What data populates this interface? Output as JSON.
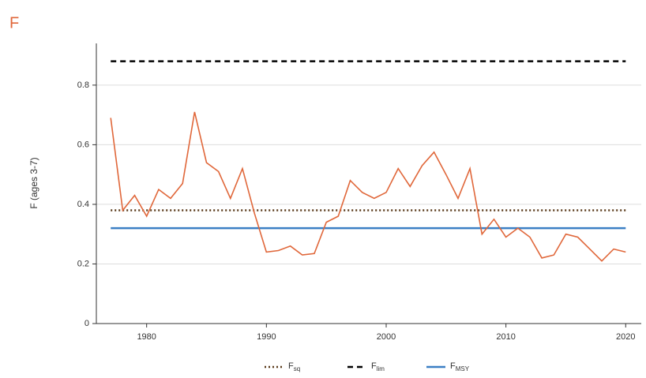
{
  "panel_label": "F",
  "chart_data": {
    "type": "line",
    "y_label": "F (ages 3-7)",
    "x": [
      1977,
      1978,
      1979,
      1980,
      1981,
      1982,
      1983,
      1984,
      1985,
      1986,
      1987,
      1988,
      1989,
      1990,
      1991,
      1992,
      1993,
      1994,
      1995,
      1996,
      1997,
      1998,
      1999,
      2000,
      2001,
      2002,
      2003,
      2004,
      2005,
      2006,
      2007,
      2008,
      2009,
      2010,
      2011,
      2012,
      2013,
      2014,
      2015,
      2016,
      2017,
      2018,
      2019,
      2020
    ],
    "values": [
      0.69,
      0.38,
      0.43,
      0.36,
      0.45,
      0.42,
      0.47,
      0.71,
      0.54,
      0.51,
      0.42,
      0.52,
      0.37,
      0.24,
      0.245,
      0.26,
      0.23,
      0.235,
      0.34,
      0.36,
      0.48,
      0.44,
      0.42,
      0.44,
      0.52,
      0.46,
      0.53,
      0.575,
      0.5,
      0.42,
      0.52,
      0.3,
      0.35,
      0.29,
      0.32,
      0.29,
      0.22,
      0.23,
      0.3,
      0.29,
      0.25,
      0.21,
      0.25,
      0.24
    ],
    "color": "#e0673a",
    "reference_lines": [
      {
        "name": "F",
        "subscript": "sq",
        "value": 0.38,
        "color": "#5a3a1a",
        "style": "dotted"
      },
      {
        "name": "F",
        "subscript": "lim",
        "value": 0.88,
        "color": "#000000",
        "style": "dashed"
      },
      {
        "name": "F",
        "subscript": "MSY",
        "value": 0.32,
        "color": "#3b7fc4",
        "style": "solid"
      }
    ],
    "xlim": [
      1975.8,
      2021.3
    ],
    "xticks": [
      1980,
      1990,
      2000,
      2010,
      2020
    ],
    "ylim": [
      0,
      0.94
    ],
    "yticks": [
      0,
      0.2,
      0.4,
      0.6,
      0.8
    ],
    "grid": true
  }
}
